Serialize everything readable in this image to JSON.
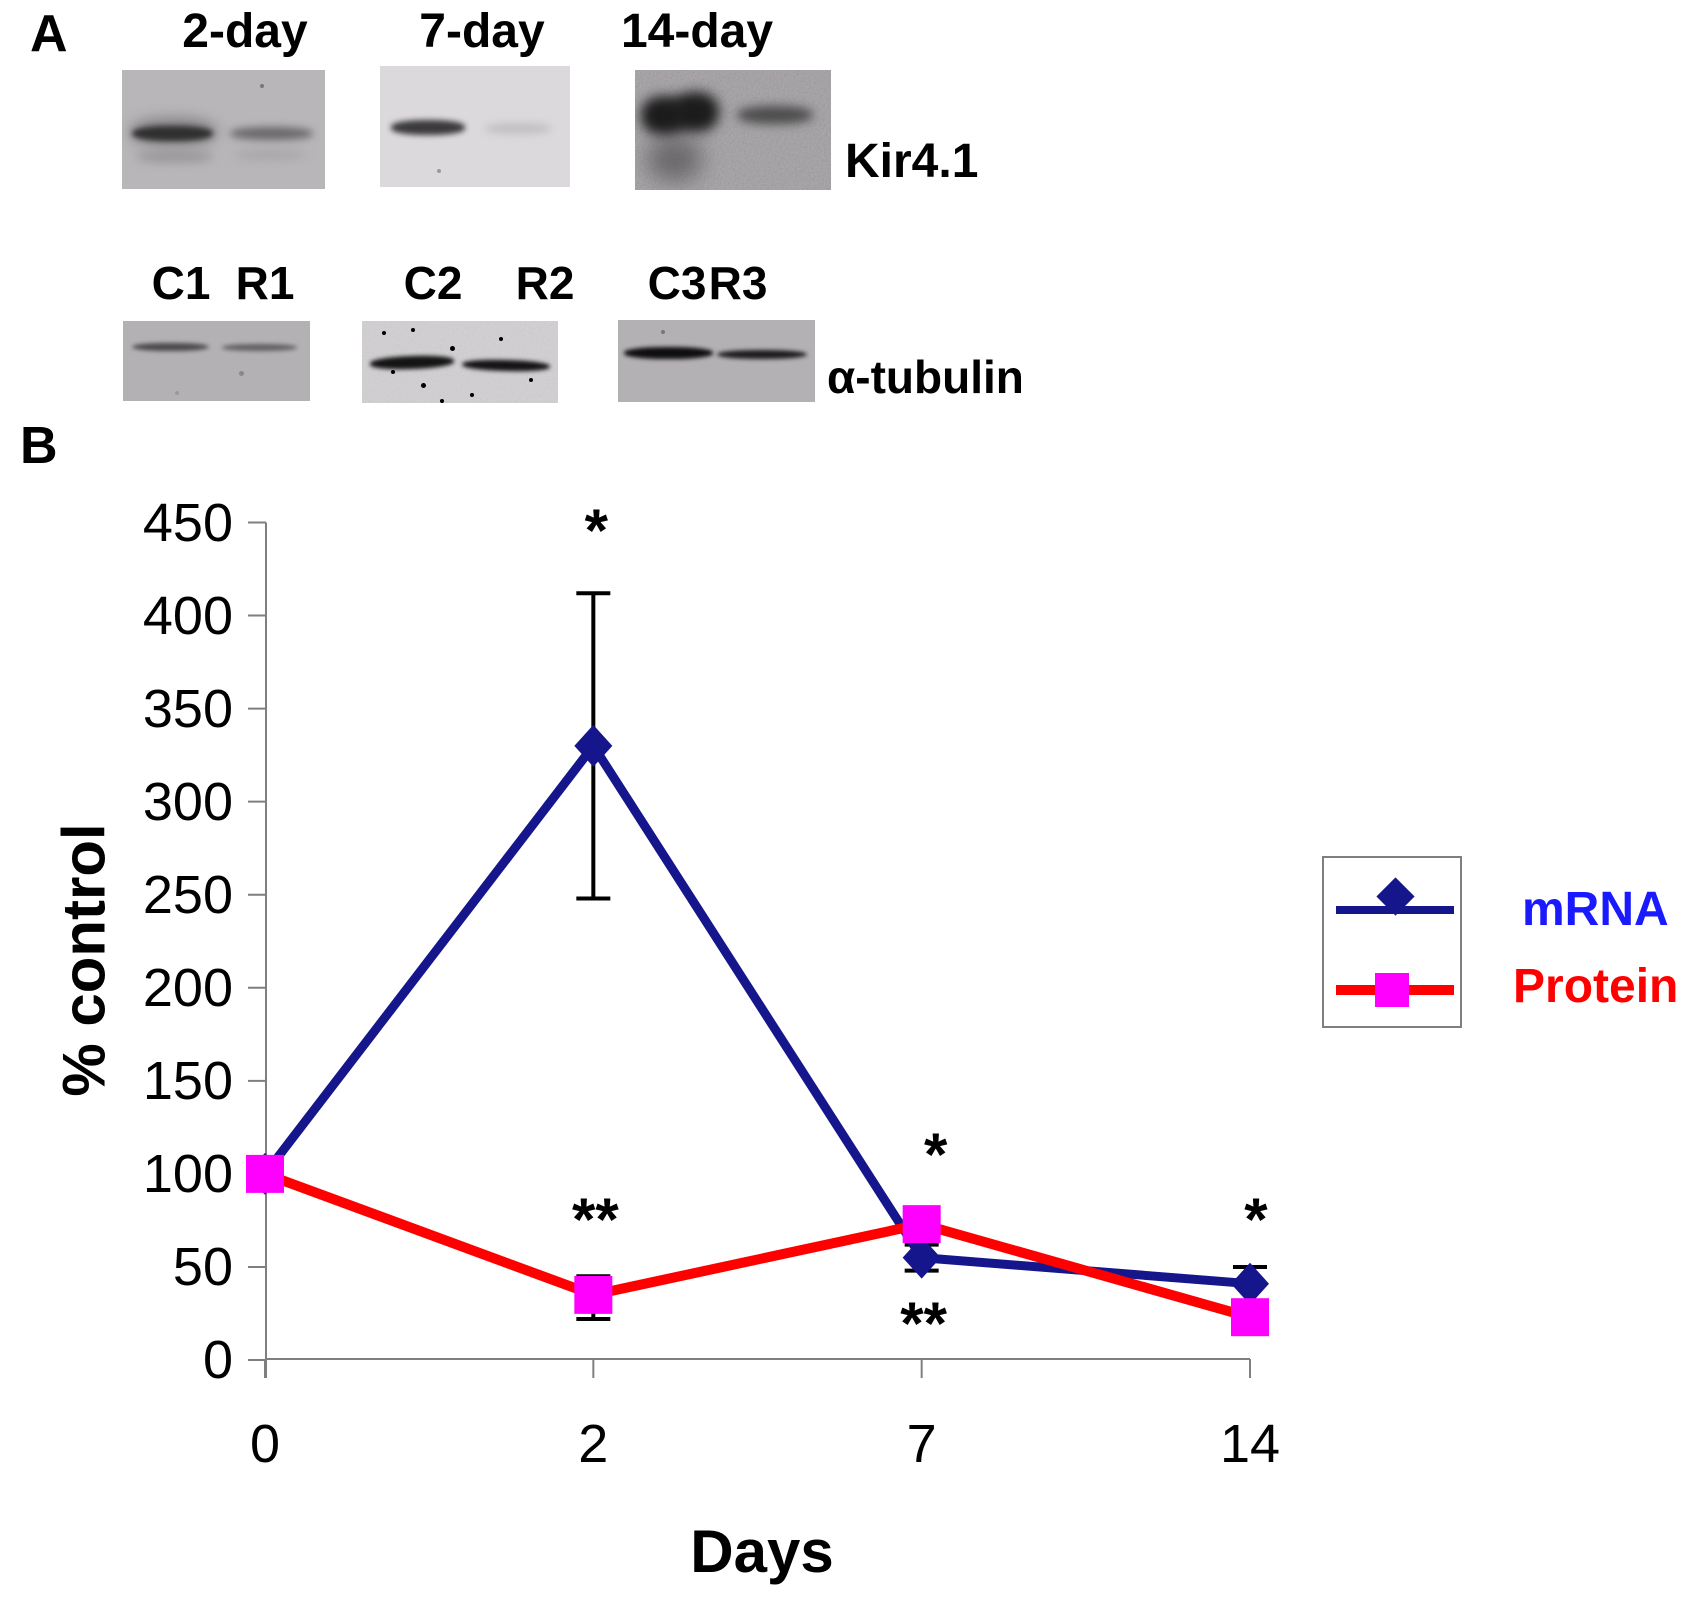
{
  "figure": {
    "panel_a": {
      "label": "A",
      "timepoint_labels": [
        "2-day",
        "7-day",
        "14-day"
      ],
      "blot_row1_label": "Kir4.1",
      "lane_labels": [
        "C1",
        "R1",
        "C2",
        "R2",
        "C3",
        "R3"
      ],
      "blot_row2_label": "α-tubulin"
    },
    "panel_b": {
      "label": "B",
      "y_axis_title": "% control",
      "x_axis_title": "Days"
    }
  },
  "chart_data": {
    "type": "line",
    "title": "",
    "xlabel": "Days",
    "ylabel": "% control",
    "categories": [
      "0",
      "2",
      "7",
      "14"
    ],
    "ylim": [
      0,
      450
    ],
    "ytick_step": 50,
    "grid": false,
    "legend_position": "right",
    "axis_color": "#7F7F7F",
    "error_bar_color": "#000000",
    "series": [
      {
        "name": "mRNA",
        "marker": "diamond",
        "line_color": "#15158C",
        "marker_color": "#15158C",
        "label_color": "#1A1AFF",
        "values": [
          100,
          330,
          55,
          41
        ],
        "err_low": [
          null,
          248,
          48,
          32
        ],
        "err_high": [
          null,
          412,
          62,
          50
        ]
      },
      {
        "name": "Protein",
        "marker": "square",
        "line_color": "#FF0000",
        "marker_color": "#FF00FF",
        "label_color": "#FF0000",
        "values": [
          100,
          35,
          73,
          23
        ],
        "err_low": [
          null,
          22,
          null,
          null
        ],
        "err_high": [
          null,
          45,
          null,
          null
        ]
      }
    ],
    "annotations": [
      {
        "text": "*",
        "category": "2",
        "value": 449,
        "dx": 3
      },
      {
        "text": "**",
        "category": "2",
        "value": 79,
        "dx": 2
      },
      {
        "text": "*",
        "category": "7",
        "value": 114,
        "dx": 14
      },
      {
        "text": "**",
        "category": "7",
        "value": 23,
        "dx": 2
      },
      {
        "text": "*",
        "category": "14",
        "value": 79,
        "dx": 6
      }
    ]
  }
}
